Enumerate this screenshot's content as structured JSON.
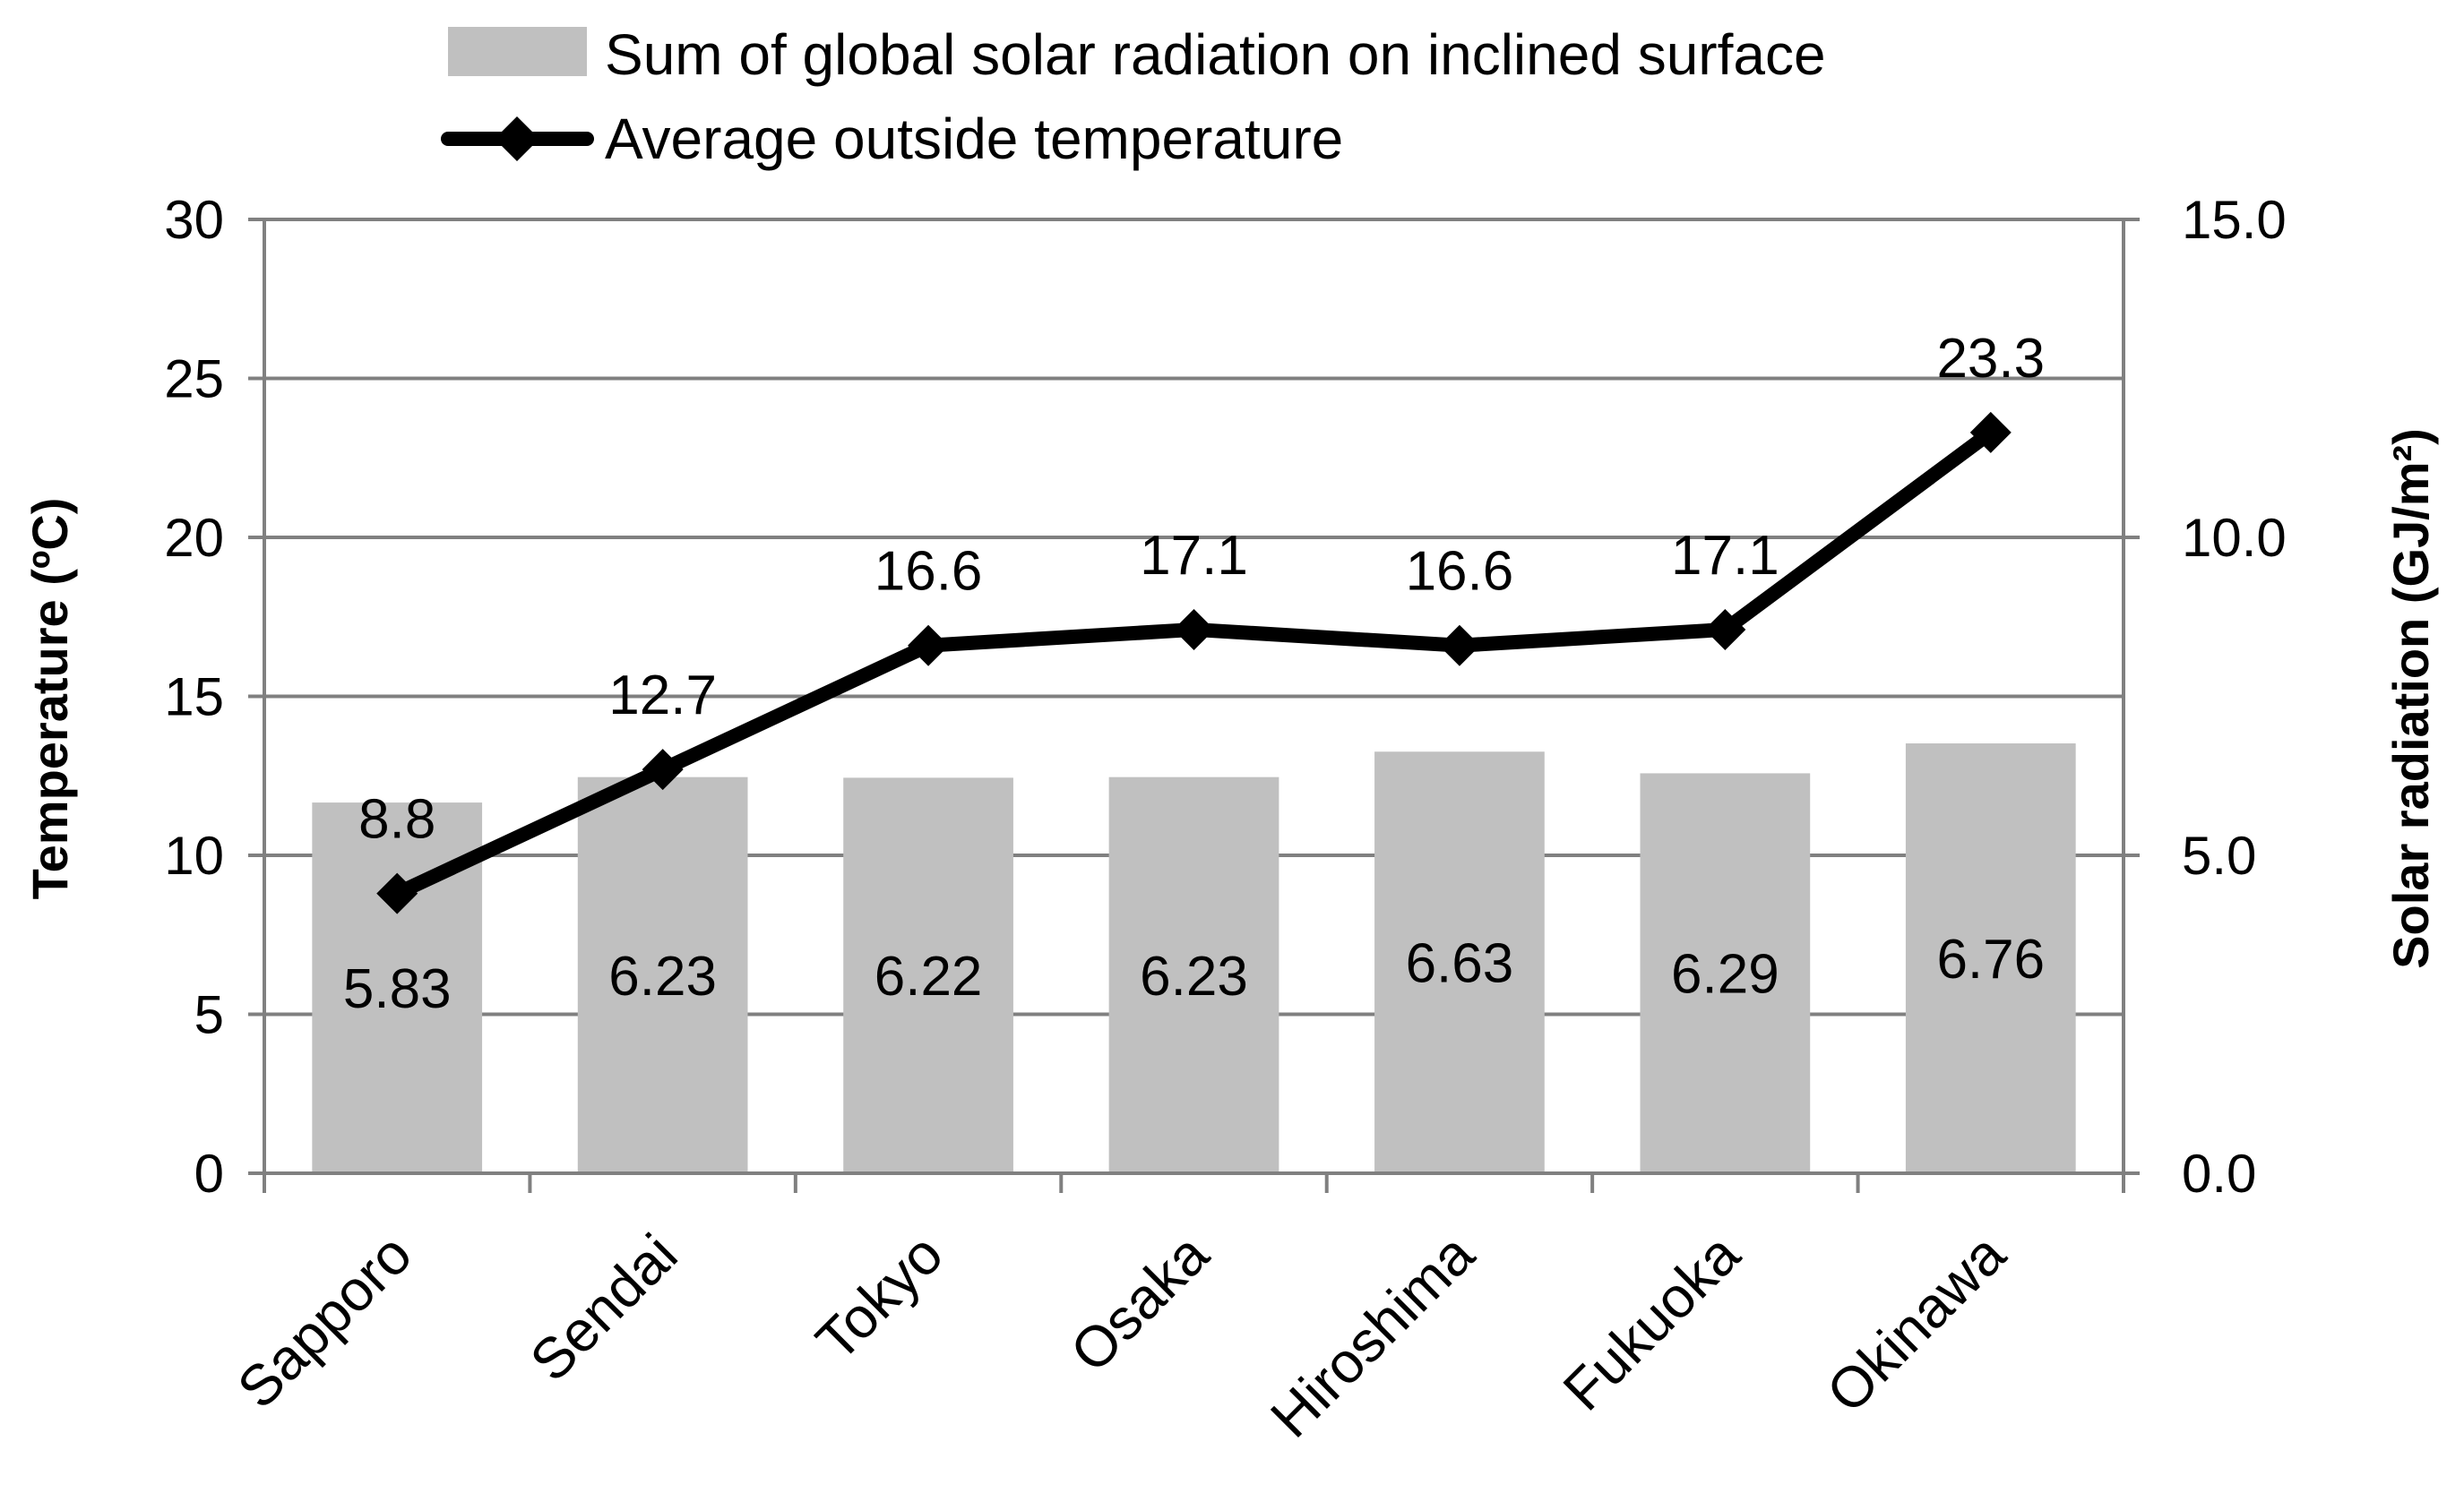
{
  "chart_data": {
    "type": "bar",
    "categories": [
      "Sapporo",
      "Sendai",
      "Tokyo",
      "Osaka",
      "Hiroshima",
      "Fukuoka",
      "Okinawa"
    ],
    "series": [
      {
        "name": "Sum of global solar radiation on inclined surface",
        "type": "bar",
        "axis": "right",
        "values": [
          5.83,
          6.23,
          6.22,
          6.23,
          6.63,
          6.29,
          6.76
        ],
        "labels": [
          "5.83",
          "6.23",
          "6.22",
          "6.23",
          "6.63",
          "6.29",
          "6.76"
        ],
        "color": "#c0c0c0"
      },
      {
        "name": "Average outside temperature",
        "type": "line",
        "axis": "left",
        "marker": "diamond",
        "values": [
          8.8,
          12.7,
          16.6,
          17.1,
          16.6,
          17.1,
          23.3
        ],
        "labels": [
          "8.8",
          "12.7",
          "16.6",
          "17.1",
          "16.6",
          "17.1",
          "23.3"
        ],
        "color": "#000000"
      }
    ],
    "y_left": {
      "label": "Temperature (ºC)",
      "range": [
        0,
        30
      ],
      "ticks": [
        0,
        5,
        10,
        15,
        20,
        25,
        30
      ],
      "tick_labels": [
        "0",
        "5",
        "10",
        "15",
        "20",
        "25",
        "30"
      ]
    },
    "y_right": {
      "label": "Solar radiation (GJ/m²)",
      "range": [
        0,
        15
      ],
      "ticks": [
        0,
        5,
        10,
        15
      ],
      "tick_labels": [
        "0.0",
        "5.0",
        "10.0",
        "15.0"
      ]
    },
    "grid": true,
    "legend": "top-center"
  }
}
